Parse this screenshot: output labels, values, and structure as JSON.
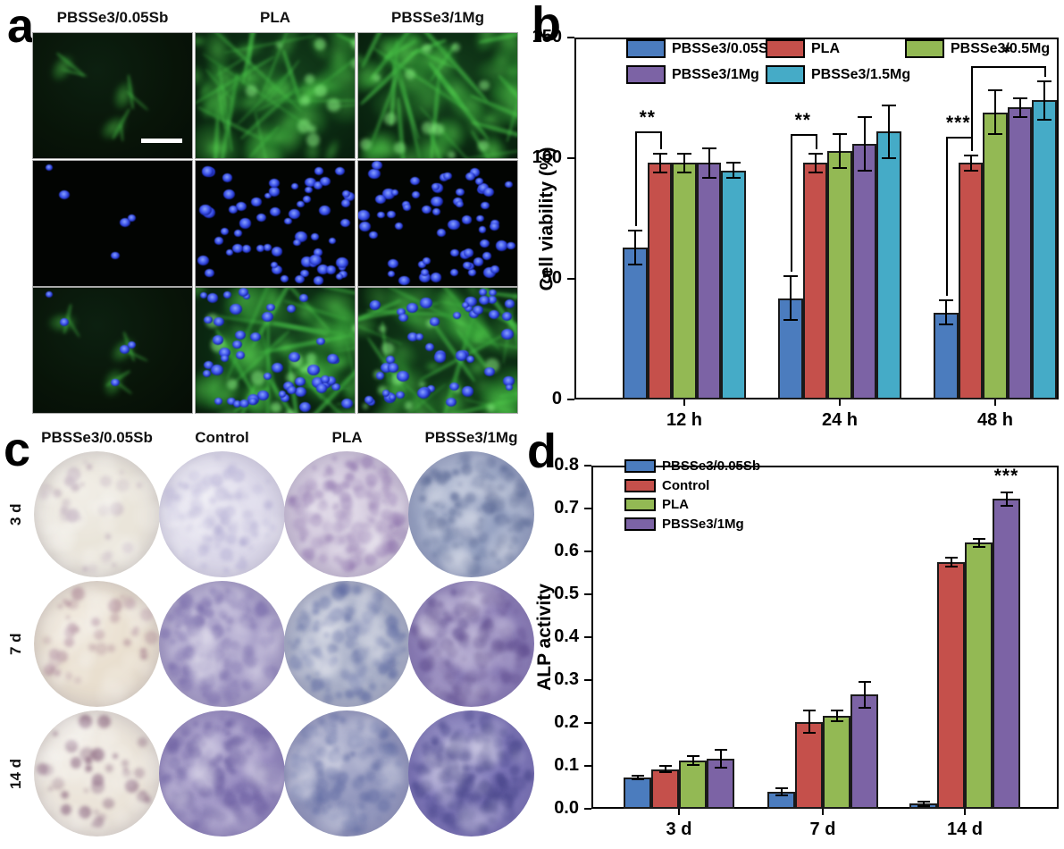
{
  "panels": {
    "a": {
      "letter": "a",
      "column_labels": [
        "PBSSe3/0.05Sb",
        "PLA",
        "PBSSe3/1Mg"
      ],
      "row_stains": [
        "cytoskeleton-green",
        "nuclei-blue",
        "merged"
      ],
      "grid": [
        [
          "sparse-green",
          "dense-green",
          "dense-green"
        ],
        [
          "sparse-nuclei",
          "dense-nuclei",
          "dense-nuclei"
        ],
        [
          "sparse-merged",
          "dense-merged",
          "dense-merged"
        ]
      ],
      "scale_bar": "white"
    },
    "b": {
      "letter": "b"
    },
    "c": {
      "letter": "c",
      "column_labels": [
        "PBSSe3/0.05Sb",
        "Control",
        "PLA",
        "PBSSe3/1Mg"
      ],
      "row_labels": [
        "3 d",
        "7 d",
        "14 d"
      ],
      "wells": [
        [
          {
            "base": "#eae5da",
            "speck": "#b09aae",
            "density": 0.12
          },
          {
            "base": "#dcd9ea",
            "speck": "#b0aad2",
            "density": 0.35
          },
          {
            "base": "#cdc2d9",
            "speck": "#8d72ac",
            "density": 0.55
          },
          {
            "base": "#96a2c2",
            "speck": "#5c6a96",
            "density": 0.55
          }
        ],
        [
          {
            "base": "#e9dfcf",
            "speck": "#9c7086",
            "density": 0.16
          },
          {
            "base": "#a89fc9",
            "speck": "#7a6dac",
            "density": 0.6
          },
          {
            "base": "#a9b0c8",
            "speck": "#5e6aa2",
            "density": 0.55
          },
          {
            "base": "#8b7db7",
            "speck": "#635192",
            "density": 0.65
          }
        ],
        [
          {
            "base": "#ebe4d9",
            "speck": "#6d3f62",
            "density": 0.15
          },
          {
            "base": "#9387be",
            "speck": "#6d60a2",
            "density": 0.65
          },
          {
            "base": "#9398be",
            "speck": "#6670a6",
            "density": 0.6
          },
          {
            "base": "#7b74b7",
            "speck": "#4c498d",
            "density": 0.8
          }
        ]
      ]
    },
    "d": {
      "letter": "d"
    }
  },
  "chart_data": [
    {
      "type": "bar",
      "panel": "b",
      "title": "",
      "xlabel": "",
      "ylabel": "Cell viability (%)",
      "ylim": [
        0,
        150
      ],
      "ytick_values": [
        0,
        50,
        100,
        150
      ],
      "ytick_labels": [
        "0",
        "50",
        "100",
        "150"
      ],
      "categories": [
        "12 h",
        "24 h",
        "48 h"
      ],
      "grid": "off",
      "legend_position": "top-inside",
      "series": [
        {
          "name": "PBSSe3/0.05Sb",
          "color": "#4b7cbe",
          "values": [
            63,
            42,
            36
          ],
          "errors": [
            7,
            9,
            5
          ]
        },
        {
          "name": "PLA",
          "color": "#c5504b",
          "values": [
            98,
            98,
            98
          ],
          "errors": [
            4,
            4,
            3
          ]
        },
        {
          "name": "PBSSe3/0.5Mg",
          "color": "#93b954",
          "values": [
            98,
            103,
            119
          ],
          "errors": [
            4,
            7,
            9
          ]
        },
        {
          "name": "PBSSe3/1Mg",
          "color": "#7c63a5",
          "values": [
            98,
            106,
            121
          ],
          "errors": [
            6,
            11,
            4
          ]
        },
        {
          "name": "PBSSe3/1.5Mg",
          "color": "#45abc7",
          "values": [
            95,
            111,
            124
          ],
          "errors": [
            3,
            11,
            8
          ]
        }
      ],
      "annotations": [
        {
          "type": "bracket",
          "category": 0,
          "series_from": 0,
          "series_to": 1,
          "top_value": 111,
          "text": "**"
        },
        {
          "type": "bracket",
          "category": 1,
          "series_from": 0,
          "series_to": 1,
          "top_value": 110,
          "text": "**"
        },
        {
          "type": "bracket",
          "category": 2,
          "series_from": 0,
          "series_to": 1,
          "top_value": 109,
          "text": "***"
        },
        {
          "type": "bracket",
          "category": 2,
          "series_from": 1,
          "series_to": 4,
          "top_value": 138,
          "text": "*"
        }
      ]
    },
    {
      "type": "bar",
      "panel": "d",
      "title": "",
      "xlabel": "",
      "ylabel": "ALP activity",
      "ylim": [
        0,
        0.8
      ],
      "ytick_values": [
        0,
        0.1,
        0.2,
        0.3,
        0.4,
        0.5,
        0.6,
        0.7,
        0.8
      ],
      "ytick_labels": [
        "0.0",
        "0.1",
        "0.2",
        "0.3",
        "0.4",
        "0.5",
        "0.6",
        "0.7",
        "0.8"
      ],
      "categories": [
        "3 d",
        "7 d",
        "14 d"
      ],
      "grid": "off",
      "legend_position": "top-left-inside",
      "series": [
        {
          "name": "PBSSe3/0.05Sb",
          "color": "#4b7cbe",
          "values": [
            0.073,
            0.04,
            0.012
          ],
          "errors": [
            0.004,
            0.008,
            0.005
          ]
        },
        {
          "name": "Control",
          "color": "#c5504b",
          "values": [
            0.092,
            0.203,
            0.575
          ],
          "errors": [
            0.007,
            0.026,
            0.01
          ]
        },
        {
          "name": "PLA",
          "color": "#93b954",
          "values": [
            0.113,
            0.217,
            0.62
          ],
          "errors": [
            0.01,
            0.012,
            0.01
          ]
        },
        {
          "name": "PBSSe3/1Mg",
          "color": "#7c63a5",
          "values": [
            0.117,
            0.266,
            0.722
          ],
          "errors": [
            0.021,
            0.03,
            0.015
          ]
        }
      ],
      "annotations": [
        {
          "type": "stars",
          "category": 2,
          "series": 3,
          "text": "***"
        }
      ]
    }
  ]
}
